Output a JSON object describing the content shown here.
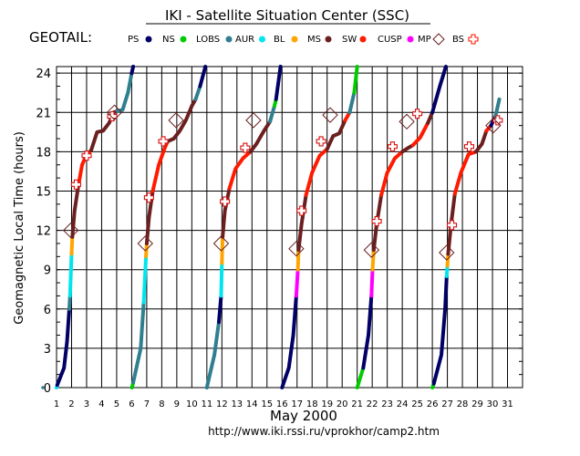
{
  "chart_data": {
    "type": "line",
    "title": "IKI - Satellite Situation Center (SSC)",
    "satellite": "GEOTAIL:",
    "ylabel": "Geomagnetic Local Time (hours)",
    "xlabel": "May   2000",
    "url": "http://www.iki.rssi.ru/vprokhor/camp2.htm",
    "xlim": [
      1,
      32
    ],
    "ylim": [
      0,
      24.5
    ],
    "x_ticks": [
      1,
      2,
      3,
      4,
      5,
      6,
      7,
      8,
      9,
      10,
      11,
      12,
      13,
      14,
      15,
      16,
      17,
      18,
      19,
      20,
      21,
      22,
      23,
      24,
      25,
      26,
      27,
      28,
      29,
      30,
      31
    ],
    "y_ticks": [
      0,
      3,
      6,
      9,
      12,
      15,
      18,
      21,
      24
    ],
    "grid": true,
    "legend_placement": "top",
    "legend": [
      {
        "name": "PS",
        "color": "#000066",
        "marker": "dot"
      },
      {
        "name": "NS",
        "color": "#00cc00",
        "marker": "dot"
      },
      {
        "name": "LOBS",
        "color": "#2f7f8f",
        "marker": "dot"
      },
      {
        "name": "AUR",
        "color": "#00e5ee",
        "marker": "dot"
      },
      {
        "name": "BL",
        "color": "#ffa500",
        "marker": "dot"
      },
      {
        "name": "MS",
        "color": "#6b1f1f",
        "marker": "dot"
      },
      {
        "name": "SW",
        "color": "#ff1a00",
        "marker": "dot"
      },
      {
        "name": "CUSP",
        "color": "#ff00ff",
        "marker": "dot"
      },
      {
        "name": "MP",
        "color": "#6b1f1f",
        "marker": "diamond"
      },
      {
        "name": "BS",
        "color": "#ff1a00",
        "marker": "cross"
      }
    ],
    "orbits": [
      {
        "segments": [
          {
            "region": "AUR",
            "x": [
              1.0,
              1.05
            ],
            "y": [
              0.0,
              0.2
            ]
          },
          {
            "region": "PS",
            "x": [
              1.05,
              1.5,
              1.7,
              1.85
            ],
            "y": [
              0.2,
              1.5,
              3.5,
              6.0
            ]
          },
          {
            "region": "LOBS",
            "x": [
              1.85,
              1.9
            ],
            "y": [
              6.0,
              7.0
            ]
          },
          {
            "region": "AUR",
            "x": [
              1.9,
              2.0
            ],
            "y": [
              7.0,
              10.2
            ]
          },
          {
            "region": "BL",
            "x": [
              2.0,
              2.05
            ],
            "y": [
              10.2,
              11.5
            ]
          },
          {
            "region": "MS",
            "x": [
              2.05,
              2.2,
              2.45
            ],
            "y": [
              11.5,
              13.5,
              15.4
            ]
          },
          {
            "region": "SW",
            "x": [
              2.45,
              2.7,
              3.0,
              3.3
            ],
            "y": [
              15.4,
              17.0,
              17.8,
              18.1
            ]
          },
          {
            "region": "MS",
            "x": [
              3.3,
              3.7,
              4.1,
              4.5,
              4.8,
              5.05
            ],
            "y": [
              18.1,
              19.5,
              19.6,
              20.2,
              21.0,
              21.1
            ]
          },
          {
            "region": "LOBS",
            "x": [
              5.05,
              5.4,
              5.75,
              6.0
            ],
            "y": [
              21.1,
              21.2,
              22.5,
              24.0
            ]
          },
          {
            "region": "PS",
            "x": [
              6.0,
              6.1
            ],
            "y": [
              24.0,
              24.5
            ]
          }
        ]
      },
      {
        "segments": [
          {
            "region": "NS",
            "x": [
              6.02,
              6.1
            ],
            "y": [
              0.0,
              0.4
            ]
          },
          {
            "region": "LOBS",
            "x": [
              6.1,
              6.6,
              6.8
            ],
            "y": [
              0.4,
              3.0,
              6.5
            ]
          },
          {
            "region": "AUR",
            "x": [
              6.8,
              6.95
            ],
            "y": [
              6.5,
              10.0
            ]
          },
          {
            "region": "BL",
            "x": [
              6.95,
              7.0
            ],
            "y": [
              10.0,
              11.0
            ]
          },
          {
            "region": "MS",
            "x": [
              7.0,
              7.15,
              7.4
            ],
            "y": [
              11.0,
              13.0,
              15.0
            ]
          },
          {
            "region": "SW",
            "x": [
              7.4,
              7.8,
              8.2,
              8.4
            ],
            "y": [
              15.0,
              17.0,
              18.3,
              18.8
            ]
          },
          {
            "region": "MS",
            "x": [
              8.4,
              8.8,
              9.2,
              9.6,
              10.0,
              10.25
            ],
            "y": [
              18.8,
              19.0,
              19.6,
              20.4,
              21.5,
              22.0
            ]
          },
          {
            "region": "LOBS",
            "x": [
              10.25,
              10.55
            ],
            "y": [
              22.0,
              23.0
            ]
          },
          {
            "region": "PS",
            "x": [
              10.55,
              10.9
            ],
            "y": [
              23.0,
              24.5
            ]
          }
        ]
      },
      {
        "segments": [
          {
            "region": "LOBS",
            "x": [
              11.0,
              11.5,
              11.8
            ],
            "y": [
              0.0,
              2.5,
              5.0
            ]
          },
          {
            "region": "PS",
            "x": [
              11.8,
              11.95
            ],
            "y": [
              5.0,
              7.0
            ]
          },
          {
            "region": "AUR",
            "x": [
              11.95,
              12.0
            ],
            "y": [
              7.0,
              9.5
            ]
          },
          {
            "region": "BL",
            "x": [
              12.0,
              12.05
            ],
            "y": [
              9.5,
              11.5
            ]
          },
          {
            "region": "MS",
            "x": [
              12.05,
              12.2,
              12.5
            ],
            "y": [
              11.5,
              13.5,
              15.2
            ]
          },
          {
            "region": "SW",
            "x": [
              12.5,
              12.9,
              13.4,
              13.9
            ],
            "y": [
              15.2,
              16.7,
              17.5,
              18.0
            ]
          },
          {
            "region": "MS",
            "x": [
              13.9,
              14.3,
              14.8,
              15.2
            ],
            "y": [
              18.0,
              18.6,
              19.6,
              20.3
            ]
          },
          {
            "region": "LOBS",
            "x": [
              15.2,
              15.5
            ],
            "y": [
              20.3,
              21.5
            ]
          },
          {
            "region": "NS",
            "x": [
              15.5,
              15.6
            ],
            "y": [
              21.5,
              22.0
            ]
          },
          {
            "region": "PS",
            "x": [
              15.6,
              15.9
            ],
            "y": [
              22.0,
              24.5
            ]
          }
        ]
      },
      {
        "segments": [
          {
            "region": "PS",
            "x": [
              16.0,
              16.45,
              16.75,
              16.95
            ],
            "y": [
              0.0,
              1.5,
              4.0,
              7.0
            ]
          },
          {
            "region": "CUSP",
            "x": [
              16.95,
              17.05
            ],
            "y": [
              7.0,
              9.0
            ]
          },
          {
            "region": "BL",
            "x": [
              17.05,
              17.1
            ],
            "y": [
              9.0,
              10.5
            ]
          },
          {
            "region": "MS",
            "x": [
              17.1,
              17.3,
              17.6
            ],
            "y": [
              10.5,
              12.5,
              14.7
            ]
          },
          {
            "region": "SW",
            "x": [
              17.6,
              18.0,
              18.5,
              19.0
            ],
            "y": [
              14.7,
              16.4,
              17.7,
              18.2
            ]
          },
          {
            "region": "MS",
            "x": [
              19.0,
              19.4,
              19.8,
              20.2
            ],
            "y": [
              18.2,
              19.2,
              19.4,
              20.4
            ]
          },
          {
            "region": "SW",
            "x": [
              20.2,
              20.5
            ],
            "y": [
              20.4,
              21.0
            ]
          },
          {
            "region": "LOBS",
            "x": [
              20.5,
              20.8
            ],
            "y": [
              21.0,
              22.5
            ]
          },
          {
            "region": "NS",
            "x": [
              20.8,
              21.0
            ],
            "y": [
              22.5,
              24.5
            ]
          }
        ]
      },
      {
        "segments": [
          {
            "region": "NS",
            "x": [
              21.0,
              21.4
            ],
            "y": [
              0.0,
              1.5
            ]
          },
          {
            "region": "PS",
            "x": [
              21.4,
              21.75,
              21.95
            ],
            "y": [
              1.5,
              4.0,
              7.0
            ]
          },
          {
            "region": "CUSP",
            "x": [
              21.95,
              22.02
            ],
            "y": [
              7.0,
              9.0
            ]
          },
          {
            "region": "BL",
            "x": [
              22.02,
              22.1
            ],
            "y": [
              9.0,
              10.5
            ]
          },
          {
            "region": "MS",
            "x": [
              22.1,
              22.3,
              22.6
            ],
            "y": [
              10.5,
              12.5,
              14.7
            ]
          },
          {
            "region": "SW",
            "x": [
              22.6,
              23.0,
              23.5,
              24.0
            ],
            "y": [
              14.7,
              16.4,
              17.5,
              18.0
            ]
          },
          {
            "region": "MS",
            "x": [
              24.0,
              24.4,
              24.7
            ],
            "y": [
              18.0,
              18.3,
              18.5
            ]
          },
          {
            "region": "SW",
            "x": [
              24.7,
              25.2,
              25.7
            ],
            "y": [
              18.5,
              19.1,
              20.2
            ]
          },
          {
            "region": "MS",
            "x": [
              25.7,
              26.0
            ],
            "y": [
              20.2,
              21.0
            ]
          },
          {
            "region": "PS",
            "x": [
              26.0,
              26.5,
              26.9
            ],
            "y": [
              21.0,
              23.0,
              24.5
            ]
          }
        ]
      },
      {
        "segments": [
          {
            "region": "NS",
            "x": [
              26.0,
              26.1
            ],
            "y": [
              0.0,
              0.3
            ]
          },
          {
            "region": "PS",
            "x": [
              26.1,
              26.6,
              26.85,
              26.95
            ],
            "y": [
              0.3,
              2.5,
              6.0,
              8.5
            ]
          },
          {
            "region": "AUR",
            "x": [
              26.95,
              27.0
            ],
            "y": [
              8.5,
              9.3
            ]
          },
          {
            "region": "BL",
            "x": [
              27.0,
              27.05
            ],
            "y": [
              9.3,
              10.2
            ]
          },
          {
            "region": "MS",
            "x": [
              27.05,
              27.25,
              27.5
            ],
            "y": [
              10.2,
              12.5,
              14.8
            ]
          },
          {
            "region": "SW",
            "x": [
              27.5,
              27.9,
              28.4,
              28.9
            ],
            "y": [
              14.8,
              16.4,
              17.8,
              18.0
            ]
          },
          {
            "region": "MS",
            "x": [
              28.9,
              29.3,
              29.6
            ],
            "y": [
              18.0,
              18.6,
              19.6
            ]
          },
          {
            "region": "SW",
            "x": [
              29.6,
              29.9
            ],
            "y": [
              19.6,
              20.0
            ]
          },
          {
            "region": "PS",
            "x": [
              29.9,
              30.2
            ],
            "y": [
              20.0,
              20.7
            ]
          },
          {
            "region": "LOBS",
            "x": [
              30.2,
              30.45
            ],
            "y": [
              20.7,
              22.0
            ]
          }
        ]
      }
    ],
    "magnetopause_crossings": [
      {
        "x": 1.95,
        "y": 12.0
      },
      {
        "x": 4.85,
        "y": 21.0
      },
      {
        "x": 6.9,
        "y": 11.0
      },
      {
        "x": 8.95,
        "y": 20.4
      },
      {
        "x": 11.95,
        "y": 11.0
      },
      {
        "x": 14.1,
        "y": 20.4
      },
      {
        "x": 16.95,
        "y": 10.6
      },
      {
        "x": 19.2,
        "y": 20.8
      },
      {
        "x": 21.95,
        "y": 10.5
      },
      {
        "x": 24.3,
        "y": 20.3
      },
      {
        "x": 26.95,
        "y": 10.3
      },
      {
        "x": 30.05,
        "y": 20.0
      }
    ],
    "bow_shock_crossings": [
      {
        "x": 2.3,
        "y": 15.5
      },
      {
        "x": 3.0,
        "y": 17.7
      },
      {
        "x": 4.7,
        "y": 20.7
      },
      {
        "x": 7.15,
        "y": 14.5
      },
      {
        "x": 8.1,
        "y": 18.8
      },
      {
        "x": 12.2,
        "y": 14.2
      },
      {
        "x": 13.55,
        "y": 18.3
      },
      {
        "x": 17.3,
        "y": 13.5
      },
      {
        "x": 18.6,
        "y": 18.8
      },
      {
        "x": 22.3,
        "y": 12.7
      },
      {
        "x": 23.35,
        "y": 18.4
      },
      {
        "x": 25.0,
        "y": 20.9
      },
      {
        "x": 27.3,
        "y": 12.4
      },
      {
        "x": 28.45,
        "y": 18.4
      },
      {
        "x": 30.35,
        "y": 20.4
      }
    ]
  }
}
